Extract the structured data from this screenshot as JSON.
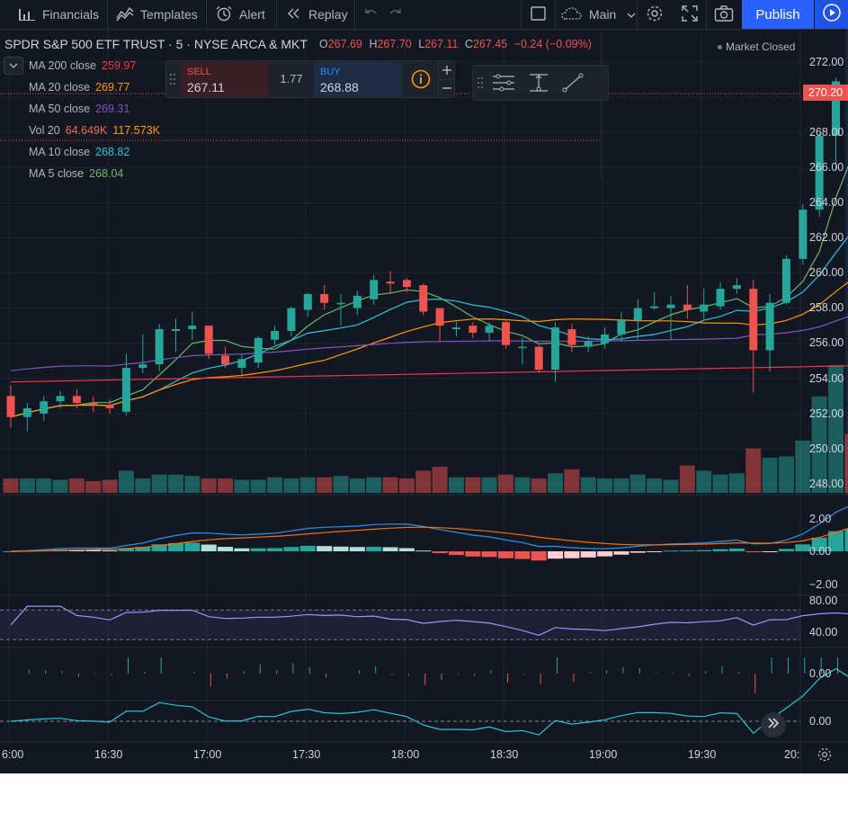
{
  "toolbar": {
    "financials": "Financials",
    "templates": "Templates",
    "alert": "Alert",
    "replay": "Replay",
    "layout": "Main",
    "publish": "Publish"
  },
  "symbol": {
    "title": "SPDR S&P 500 ETF TRUST · 5 · NYSE ARCA & MKT",
    "o_label": "O",
    "o": "267.69",
    "h_label": "H",
    "h": "267.70",
    "l_label": "L",
    "l": "267.11",
    "c_label": "C",
    "c": "267.45",
    "change": "−0.24 (−0.09%)"
  },
  "market_status": "Market Closed",
  "trade": {
    "sell_label": "SELL",
    "sell_price": "267.11",
    "spread": "1.77",
    "buy_label": "BUY",
    "buy_price": "268.88"
  },
  "indicators": [
    {
      "name": "MA 200 close",
      "value": "259.97",
      "color": "#f23645"
    },
    {
      "name": "MA 20 close",
      "value": "269.77",
      "color": "#ff9800"
    },
    {
      "name": "MA 50 close",
      "value": "269.31",
      "color": "#7e57c2"
    },
    {
      "name": "Vol 20",
      "value": "64.649K",
      "value2": "117.573K",
      "color": "#ef6c4a",
      "color2": "#ff9800"
    },
    {
      "name": "MA 10 close",
      "value": "268.82",
      "color": "#26c6da"
    },
    {
      "name": "MA 5 close",
      "value": "268.04",
      "color": "#66bb6a"
    }
  ],
  "current_price": "270.20",
  "price_axis": [
    "272.00",
    "270.00",
    "268.00",
    "266.00",
    "264.00",
    "262.00",
    "260.00",
    "258.00",
    "256.00",
    "254.00",
    "252.00",
    "250.00",
    "248.00"
  ],
  "macd_axis": [
    "2.00",
    "0.00",
    "−2.00"
  ],
  "rsi_axis": [
    "80.00",
    "40.00"
  ],
  "pane3_axis": [
    "0.00"
  ],
  "pane4_axis": [
    "0.00"
  ],
  "time_axis": [
    "6:00",
    "16:30",
    "17:00",
    "17:30",
    "18:00",
    "18:30",
    "19:00",
    "19:30",
    "20:"
  ],
  "colors": {
    "up": "#26a69a",
    "down": "#ef5350",
    "background": "#131722",
    "accent": "#2962ff"
  },
  "chart_data": {
    "type": "candlestick",
    "price_range": [
      247.5,
      273.5
    ],
    "candles": [
      {
        "o": 253.0,
        "h": 253.6,
        "l": 251.2,
        "c": 251.8
      },
      {
        "o": 251.8,
        "h": 252.6,
        "l": 251.0,
        "c": 252.3
      },
      {
        "o": 252.0,
        "h": 253.0,
        "l": 251.6,
        "c": 252.7
      },
      {
        "o": 252.7,
        "h": 253.3,
        "l": 252.3,
        "c": 253.0
      },
      {
        "o": 253.0,
        "h": 253.4,
        "l": 252.3,
        "c": 252.6
      },
      {
        "o": 252.6,
        "h": 253.0,
        "l": 252.1,
        "c": 252.5
      },
      {
        "o": 252.5,
        "h": 252.8,
        "l": 252.0,
        "c": 252.3
      },
      {
        "o": 252.1,
        "h": 255.4,
        "l": 251.9,
        "c": 254.6
      },
      {
        "o": 254.6,
        "h": 256.5,
        "l": 254.3,
        "c": 254.8
      },
      {
        "o": 254.8,
        "h": 257.1,
        "l": 254.4,
        "c": 256.8
      },
      {
        "o": 256.7,
        "h": 257.4,
        "l": 255.5,
        "c": 256.8
      },
      {
        "o": 256.8,
        "h": 257.8,
        "l": 256.2,
        "c": 257.0
      },
      {
        "o": 257.0,
        "h": 257.0,
        "l": 255.1,
        "c": 255.4
      },
      {
        "o": 255.3,
        "h": 255.8,
        "l": 254.6,
        "c": 254.8
      },
      {
        "o": 254.6,
        "h": 255.4,
        "l": 254.2,
        "c": 255.1
      },
      {
        "o": 254.9,
        "h": 256.4,
        "l": 254.6,
        "c": 256.3
      },
      {
        "o": 256.2,
        "h": 257.0,
        "l": 255.9,
        "c": 256.7
      },
      {
        "o": 256.7,
        "h": 258.1,
        "l": 256.4,
        "c": 258.0
      },
      {
        "o": 257.9,
        "h": 258.9,
        "l": 257.5,
        "c": 258.8
      },
      {
        "o": 258.8,
        "h": 259.3,
        "l": 257.9,
        "c": 258.3
      },
      {
        "o": 258.3,
        "h": 258.8,
        "l": 257.0,
        "c": 258.3
      },
      {
        "o": 258.0,
        "h": 259.0,
        "l": 257.6,
        "c": 258.7
      },
      {
        "o": 258.5,
        "h": 259.9,
        "l": 258.2,
        "c": 259.6
      },
      {
        "o": 259.5,
        "h": 260.1,
        "l": 258.8,
        "c": 259.4
      },
      {
        "o": 259.6,
        "h": 259.7,
        "l": 258.9,
        "c": 259.2
      },
      {
        "o": 259.3,
        "h": 259.4,
        "l": 257.6,
        "c": 257.8
      },
      {
        "o": 258.0,
        "h": 258.0,
        "l": 256.1,
        "c": 257.0
      },
      {
        "o": 256.8,
        "h": 257.2,
        "l": 256.4,
        "c": 256.9
      },
      {
        "o": 257.0,
        "h": 257.2,
        "l": 256.3,
        "c": 256.6
      },
      {
        "o": 256.6,
        "h": 257.2,
        "l": 256.1,
        "c": 257.0
      },
      {
        "o": 257.2,
        "h": 257.3,
        "l": 255.7,
        "c": 255.9
      },
      {
        "o": 255.8,
        "h": 256.3,
        "l": 254.8,
        "c": 255.8
      },
      {
        "o": 255.8,
        "h": 255.9,
        "l": 254.3,
        "c": 254.5
      },
      {
        "o": 254.5,
        "h": 257.2,
        "l": 253.8,
        "c": 256.9
      },
      {
        "o": 256.8,
        "h": 257.1,
        "l": 255.5,
        "c": 255.9
      },
      {
        "o": 255.8,
        "h": 256.4,
        "l": 255.5,
        "c": 256.1
      },
      {
        "o": 256.0,
        "h": 256.9,
        "l": 255.7,
        "c": 256.5
      },
      {
        "o": 256.5,
        "h": 257.8,
        "l": 256.1,
        "c": 257.3
      },
      {
        "o": 257.3,
        "h": 258.5,
        "l": 256.2,
        "c": 258.0
      },
      {
        "o": 258.0,
        "h": 258.9,
        "l": 257.9,
        "c": 258.1
      },
      {
        "o": 258.0,
        "h": 258.7,
        "l": 256.2,
        "c": 258.2
      },
      {
        "o": 258.2,
        "h": 259.3,
        "l": 257.4,
        "c": 257.9
      },
      {
        "o": 257.8,
        "h": 259.1,
        "l": 257.4,
        "c": 258.2
      },
      {
        "o": 258.1,
        "h": 259.5,
        "l": 257.9,
        "c": 259.1
      },
      {
        "o": 259.1,
        "h": 259.7,
        "l": 258.8,
        "c": 259.3
      },
      {
        "o": 259.1,
        "h": 259.6,
        "l": 253.2,
        "c": 255.6
      },
      {
        "o": 255.6,
        "h": 258.8,
        "l": 254.4,
        "c": 258.3
      },
      {
        "o": 258.3,
        "h": 261.0,
        "l": 258.2,
        "c": 260.8
      },
      {
        "o": 260.8,
        "h": 263.9,
        "l": 260.5,
        "c": 263.6
      },
      {
        "o": 263.6,
        "h": 268.0,
        "l": 263.2,
        "c": 267.8
      },
      {
        "o": 267.8,
        "h": 271.1,
        "l": 265.9,
        "c": 270.9
      },
      {
        "o": 270.9,
        "h": 271.0,
        "l": 266.3,
        "c": 270.2
      }
    ],
    "volume": [
      11,
      11,
      11,
      10,
      11,
      9,
      10,
      17,
      11,
      14,
      14,
      13,
      11,
      11,
      10,
      10,
      12,
      11,
      12,
      12,
      13,
      11,
      12,
      12,
      11,
      17,
      20,
      12,
      12,
      12,
      14,
      12,
      11,
      15,
      18,
      12,
      11,
      11,
      14,
      11,
      10,
      21,
      17,
      14,
      15,
      34,
      27,
      28,
      40,
      74,
      98,
      45
    ]
  }
}
